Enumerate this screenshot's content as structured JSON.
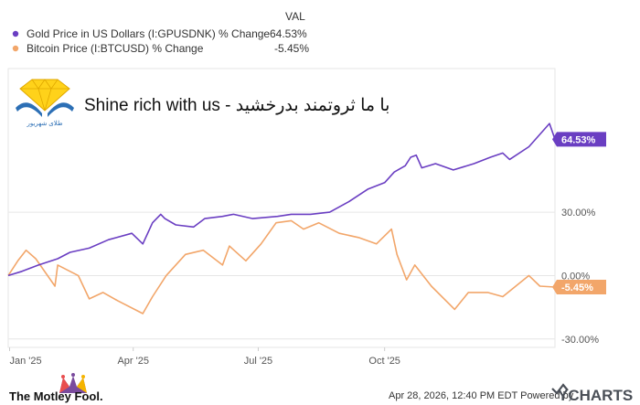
{
  "legend": {
    "header": "VAL",
    "items": [
      {
        "label": "Gold Price in US Dollars (I:GPUSDNK) % Change",
        "value": "64.53%",
        "color": "#6a3ec2"
      },
      {
        "label": "Bitcoin Price (I:BTCUSD) % Change",
        "value": "-5.45%",
        "color": "#f2a66a"
      }
    ]
  },
  "watermark": {
    "tagline": "Shine rich with us - با ما ثروتمند بدرخشید",
    "logo_caption": "طلای شهریور"
  },
  "footer": {
    "brand_left": "The Motley Fool.",
    "timestamp": "Apr 28, 2026, 12:40 PM EDT Powered by",
    "brand_right": "YCHARTS"
  },
  "chart_data": {
    "type": "line",
    "x_ticks": [
      "Jan '25",
      "Apr '25",
      "Jul '25",
      "Oct '25"
    ],
    "y_ticks": [
      "30.00%",
      "0.00%",
      "-30.00%"
    ],
    "y_tick_values": [
      30,
      0,
      -30
    ],
    "ylim": [
      -34,
      98
    ],
    "end_labels": [
      "64.53%",
      "-5.45%"
    ],
    "series": [
      {
        "name": "Gold Price in US Dollars (I:GPUSDNK) % Change",
        "color": "#6a3ec2",
        "x": [
          "2024-12-31",
          "2025-01-10",
          "2025-01-22",
          "2025-02-05",
          "2025-02-14",
          "2025-02-28",
          "2025-03-14",
          "2025-03-31",
          "2025-04-08",
          "2025-04-15",
          "2025-04-21",
          "2025-04-24",
          "2025-05-02",
          "2025-05-15",
          "2025-05-23",
          "2025-06-05",
          "2025-06-13",
          "2025-06-27",
          "2025-07-15",
          "2025-07-25",
          "2025-08-08",
          "2025-08-22",
          "2025-09-05",
          "2025-09-19",
          "2025-10-01",
          "2025-10-08",
          "2025-10-16",
          "2025-10-20",
          "2025-10-24",
          "2025-10-28",
          "2025-11-07",
          "2025-11-20",
          "2025-12-05",
          "2025-12-17",
          "2025-12-26",
          "2025-12-31",
          "2026-01-14",
          "2026-01-29",
          "2026-02-02"
        ],
        "values": [
          0,
          2,
          5,
          8,
          11,
          13,
          17,
          20,
          15,
          25,
          29,
          27,
          24,
          23,
          27,
          28,
          29,
          27,
          28,
          29,
          29,
          30,
          35,
          41,
          44,
          49,
          52,
          56,
          57,
          51,
          53,
          50,
          53,
          56,
          58,
          55,
          61,
          72,
          64.53
        ]
      },
      {
        "name": "Bitcoin Price (I:BTCUSD) % Change",
        "color": "#f2a66a",
        "x": [
          "2024-12-31",
          "2025-01-07",
          "2025-01-13",
          "2025-01-20",
          "2025-02-03",
          "2025-02-05",
          "2025-02-20",
          "2025-02-28",
          "2025-03-10",
          "2025-03-21",
          "2025-04-08",
          "2025-04-15",
          "2025-04-25",
          "2025-05-09",
          "2025-05-22",
          "2025-06-05",
          "2025-06-10",
          "2025-06-22",
          "2025-07-03",
          "2025-07-14",
          "2025-07-25",
          "2025-08-03",
          "2025-08-14",
          "2025-08-29",
          "2025-09-12",
          "2025-09-25",
          "2025-10-06",
          "2025-10-10",
          "2025-10-17",
          "2025-10-23",
          "2025-11-04",
          "2025-11-21",
          "2025-12-01",
          "2025-12-15",
          "2025-12-26",
          "2026-01-14",
          "2026-01-22",
          "2026-02-02"
        ],
        "values": [
          0,
          7,
          12,
          8,
          -5,
          5,
          0,
          -11,
          -8,
          -12,
          -18,
          -10,
          0,
          10,
          12,
          5,
          14,
          7,
          15,
          25,
          26,
          22,
          25,
          20,
          18,
          15,
          22,
          10,
          -2,
          5,
          -5,
          -16,
          -8,
          -8,
          -10,
          0,
          -5,
          -5.45
        ]
      }
    ]
  }
}
